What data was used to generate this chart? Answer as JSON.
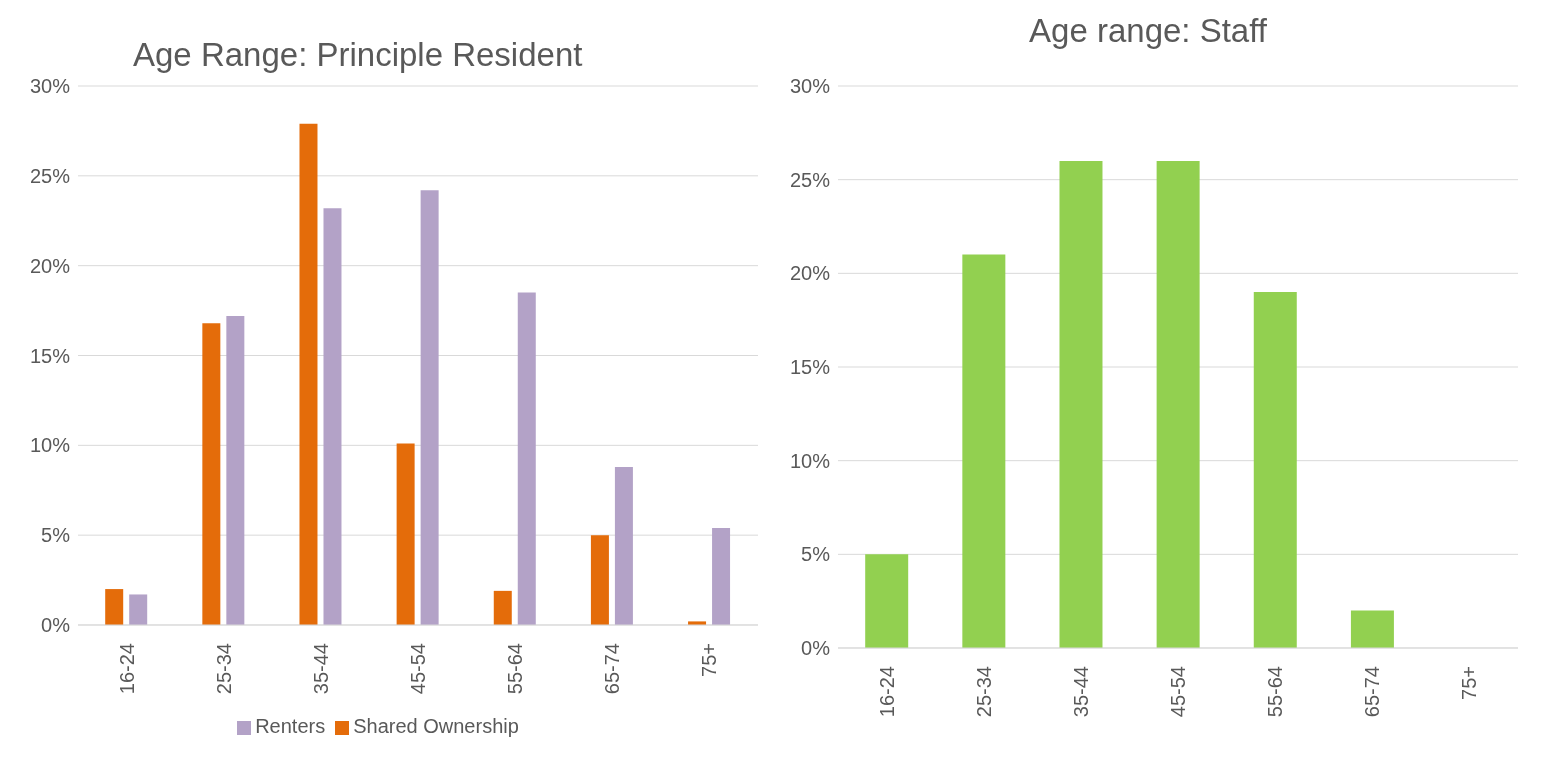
{
  "chart_data": [
    {
      "type": "bar",
      "title": "Age Range: Principle Resident",
      "categories": [
        "16-24",
        "25-34",
        "35-44",
        "45-54",
        "55-64",
        "65-74",
        "75+"
      ],
      "series": [
        {
          "name": "Shared Ownership",
          "color": "#e46c0a",
          "values": [
            2.0,
            16.8,
            27.9,
            10.1,
            1.9,
            5.0,
            0.2
          ]
        },
        {
          "name": "Renters",
          "color": "#b3a2c7",
          "values": [
            1.7,
            17.2,
            23.2,
            24.2,
            18.5,
            8.8,
            5.4
          ]
        }
      ],
      "ylim": [
        0,
        30
      ],
      "yticks": [
        {
          "value": 0,
          "label": "0%"
        },
        {
          "value": 5,
          "label": "5%"
        },
        {
          "value": 10,
          "label": "10%"
        },
        {
          "value": 15,
          "label": "15%"
        },
        {
          "value": 20,
          "label": "20%"
        },
        {
          "value": 25,
          "label": "25%"
        },
        {
          "value": 30,
          "label": "30%"
        }
      ],
      "grid": "y",
      "legend": "bottom"
    },
    {
      "type": "bar",
      "title": "Age range: Staff",
      "categories": [
        "16-24",
        "25-34",
        "35-44",
        "45-54",
        "55-64",
        "65-74",
        "75+"
      ],
      "series": [
        {
          "color": "#92d050",
          "values": [
            5,
            21,
            26,
            26,
            19,
            2,
            0
          ]
        }
      ],
      "ylim": [
        0,
        30
      ],
      "yticks": [
        {
          "value": 0,
          "label": "0%"
        },
        {
          "value": 5,
          "label": "5%"
        },
        {
          "value": 10,
          "label": "10%"
        },
        {
          "value": 15,
          "label": "15%"
        },
        {
          "value": 20,
          "label": "20%"
        },
        {
          "value": 25,
          "label": "25%"
        },
        {
          "value": 30,
          "label": "30%"
        }
      ],
      "grid": "y"
    }
  ]
}
